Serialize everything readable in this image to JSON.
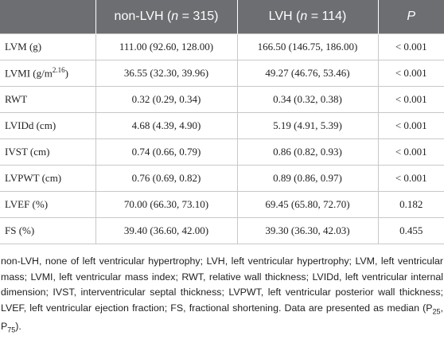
{
  "table": {
    "header": [
      [
        ""
      ],
      [
        "non-LVH (",
        "n",
        " = 315)"
      ],
      [
        "LVH (",
        "n",
        " = 114)"
      ],
      [
        "",
        "P",
        ""
      ]
    ],
    "rows": [
      {
        "label": [
          "LVM (g)"
        ],
        "cells": [
          "111.00 (92.60, 128.00)",
          "166.50 (146.75, 186.00)",
          "< 0.001"
        ]
      },
      {
        "label": [
          "LVMI (g/m",
          "2.16",
          ")"
        ],
        "cells": [
          "36.55 (32.30, 39.96)",
          "49.27 (46.76, 53.46)",
          "< 0.001"
        ]
      },
      {
        "label": [
          "RWT"
        ],
        "cells": [
          "0.32 (0.29, 0.34)",
          "0.34 (0.32, 0.38)",
          "< 0.001"
        ]
      },
      {
        "label": [
          "LVIDd (cm)"
        ],
        "cells": [
          "4.68 (4.39, 4.90)",
          "5.19 (4.91, 5.39)",
          "< 0.001"
        ]
      },
      {
        "label": [
          "IVST (cm)"
        ],
        "cells": [
          "0.74 (0.66, 0.79)",
          "0.86 (0.82, 0.93)",
          "< 0.001"
        ]
      },
      {
        "label": [
          "LVPWT (cm)"
        ],
        "cells": [
          "0.76 (0.69, 0.82)",
          "0.89 (0.86, 0.97)",
          "< 0.001"
        ]
      },
      {
        "label": [
          "LVEF (%)"
        ],
        "cells": [
          "70.00 (66.30, 73.10)",
          "69.45 (65.80, 72.70)",
          "0.182"
        ]
      },
      {
        "label": [
          "FS (%)"
        ],
        "cells": [
          "39.40 (36.60, 42.00)",
          "39.30 (36.30, 42.03)",
          "0.455"
        ]
      }
    ]
  },
  "footnote": [
    "non-LVH, none of left ventricular hypertrophy; LVH, left ventricular hypertrophy; LVM, left ventricular mass; LVMI, left ventricular mass index; RWT, relative wall thickness; LVIDd, left ventricular internal dimension; IVST, interventricular septal thickness; LVPWT, left ventricular posterior wall thickness; LVEF, left ventricular ejection fraction; FS, fractional shortening. Data are presented as median (P",
    "25",
    ", P",
    "75",
    ")."
  ]
}
